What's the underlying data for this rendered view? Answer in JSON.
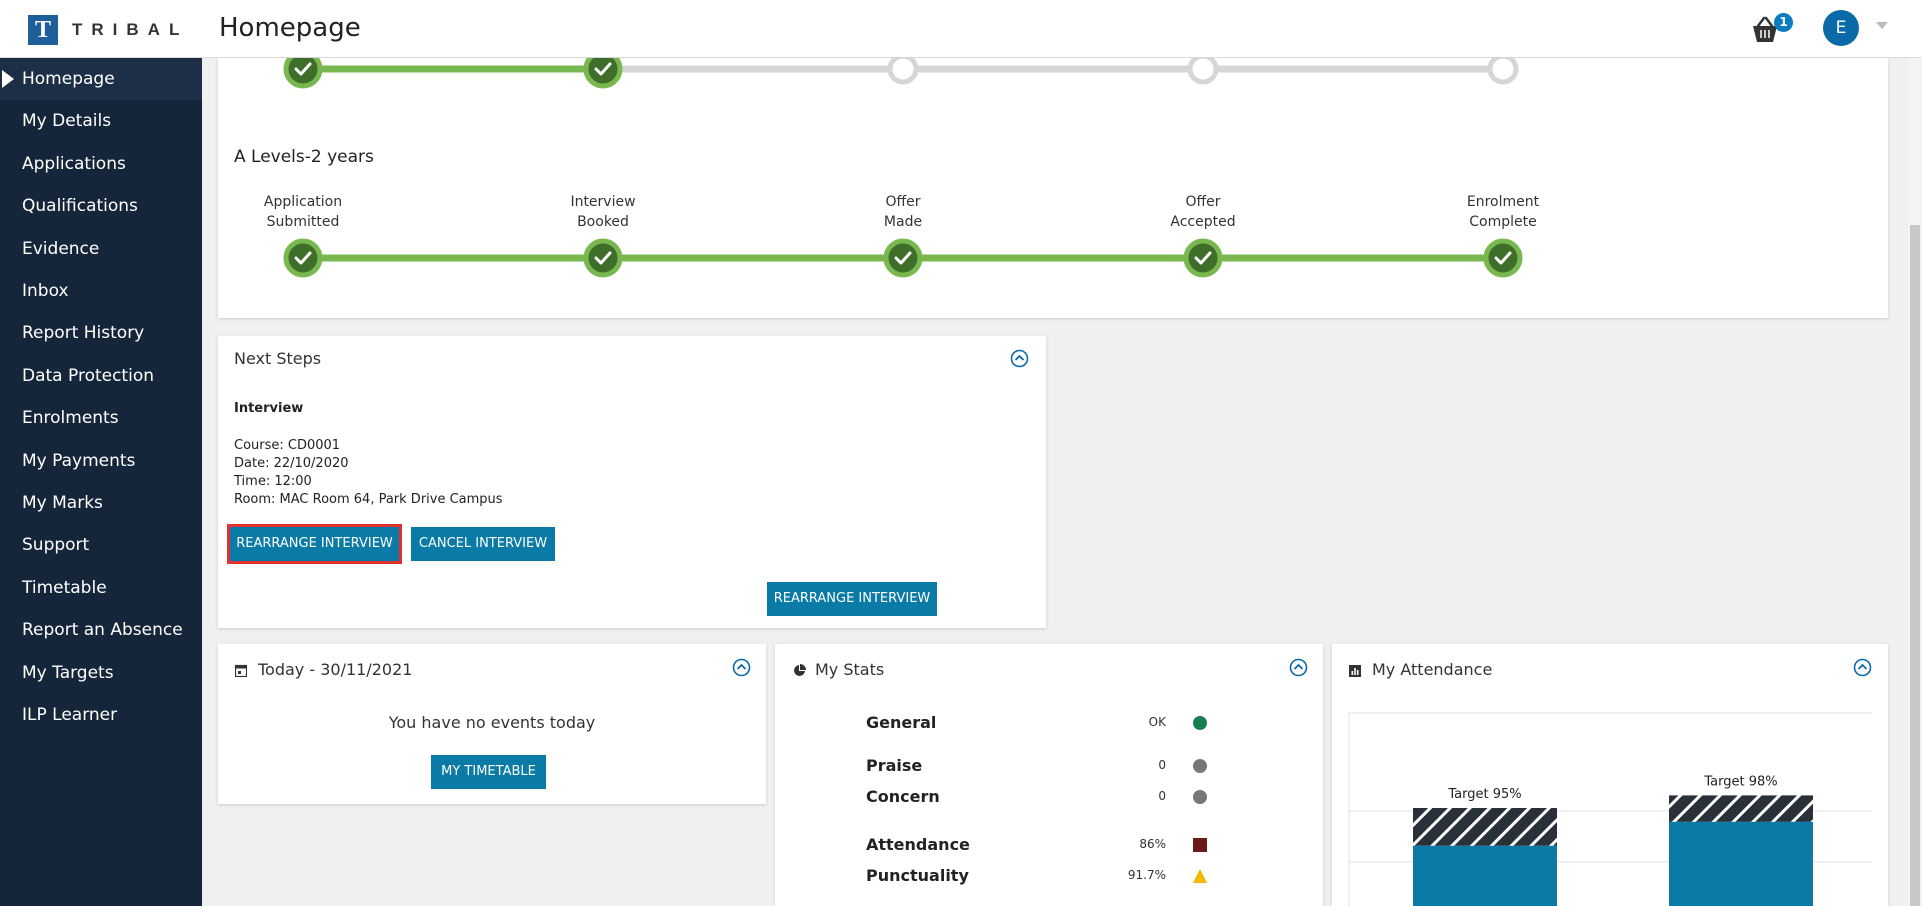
{
  "header": {
    "logo_letter": "T",
    "logo_text": "TRIBAL",
    "page_title": "Homepage",
    "basket_count": "1",
    "avatar_initial": "E"
  },
  "sidebar": {
    "items": [
      {
        "label": "Homepage",
        "active": true
      },
      {
        "label": "My Details"
      },
      {
        "label": "Applications"
      },
      {
        "label": "Qualifications"
      },
      {
        "label": "Evidence"
      },
      {
        "label": "Inbox"
      },
      {
        "label": "Report History"
      },
      {
        "label": "Data Protection"
      },
      {
        "label": "Enrolments"
      },
      {
        "label": "My Payments"
      },
      {
        "label": "My Marks"
      },
      {
        "label": "Support"
      },
      {
        "label": "Timetable"
      },
      {
        "label": "Report an Absence"
      },
      {
        "label": "My Targets"
      },
      {
        "label": "ILP Learner"
      }
    ]
  },
  "application": {
    "course_title": "A Levels-2 years",
    "top_progress_completed": 2,
    "steps": [
      {
        "line1": "Application",
        "line2": "Submitted"
      },
      {
        "line1": "Interview",
        "line2": "Booked"
      },
      {
        "line1": "Offer",
        "line2": "Made"
      },
      {
        "line1": "Offer",
        "line2": "Accepted"
      },
      {
        "line1": "Enrolment",
        "line2": "Complete"
      }
    ]
  },
  "next_steps": {
    "title": "Next Steps",
    "heading": "Interview",
    "course": "Course: CD0001",
    "date": "Date: 22/10/2020",
    "time": "Time: 12:00",
    "room": "Room: MAC Room 64, Park Drive Campus",
    "rearrange_label": "REARRANGE INTERVIEW",
    "cancel_label": "CANCEL INTERVIEW",
    "rearrange_label_2": "REARRANGE INTERVIEW"
  },
  "today": {
    "title": "Today - 30/11/2021",
    "message": "You have no events today",
    "button_label": "MY TIMETABLE"
  },
  "stats": {
    "title": "My Stats",
    "rows": [
      {
        "label": "General",
        "value": "OK",
        "marker": "circle",
        "color": "#1a7f4f"
      },
      {
        "label": "Praise",
        "value": "0",
        "marker": "circle",
        "color": "#777777"
      },
      {
        "label": "Concern",
        "value": "0",
        "marker": "circle",
        "color": "#777777"
      },
      {
        "label": "Attendance",
        "value": "86%",
        "marker": "square",
        "color": "#6b1a1a"
      },
      {
        "label": "Punctuality",
        "value": "91.7%",
        "marker": "triangle",
        "color": "#f5b800"
      }
    ]
  },
  "attendance": {
    "title": "My Attendance",
    "accent": "#0a7aa6"
  },
  "chart_data": {
    "type": "bar",
    "categories": [
      "Target 95%",
      "Target 98%"
    ],
    "series": [
      {
        "values": [
          86,
          91.7
        ]
      },
      {
        "values": [
          95,
          98
        ]
      }
    ],
    "title": "",
    "xlabel": "",
    "ylabel": "",
    "ylim": [
      0,
      100
    ]
  }
}
